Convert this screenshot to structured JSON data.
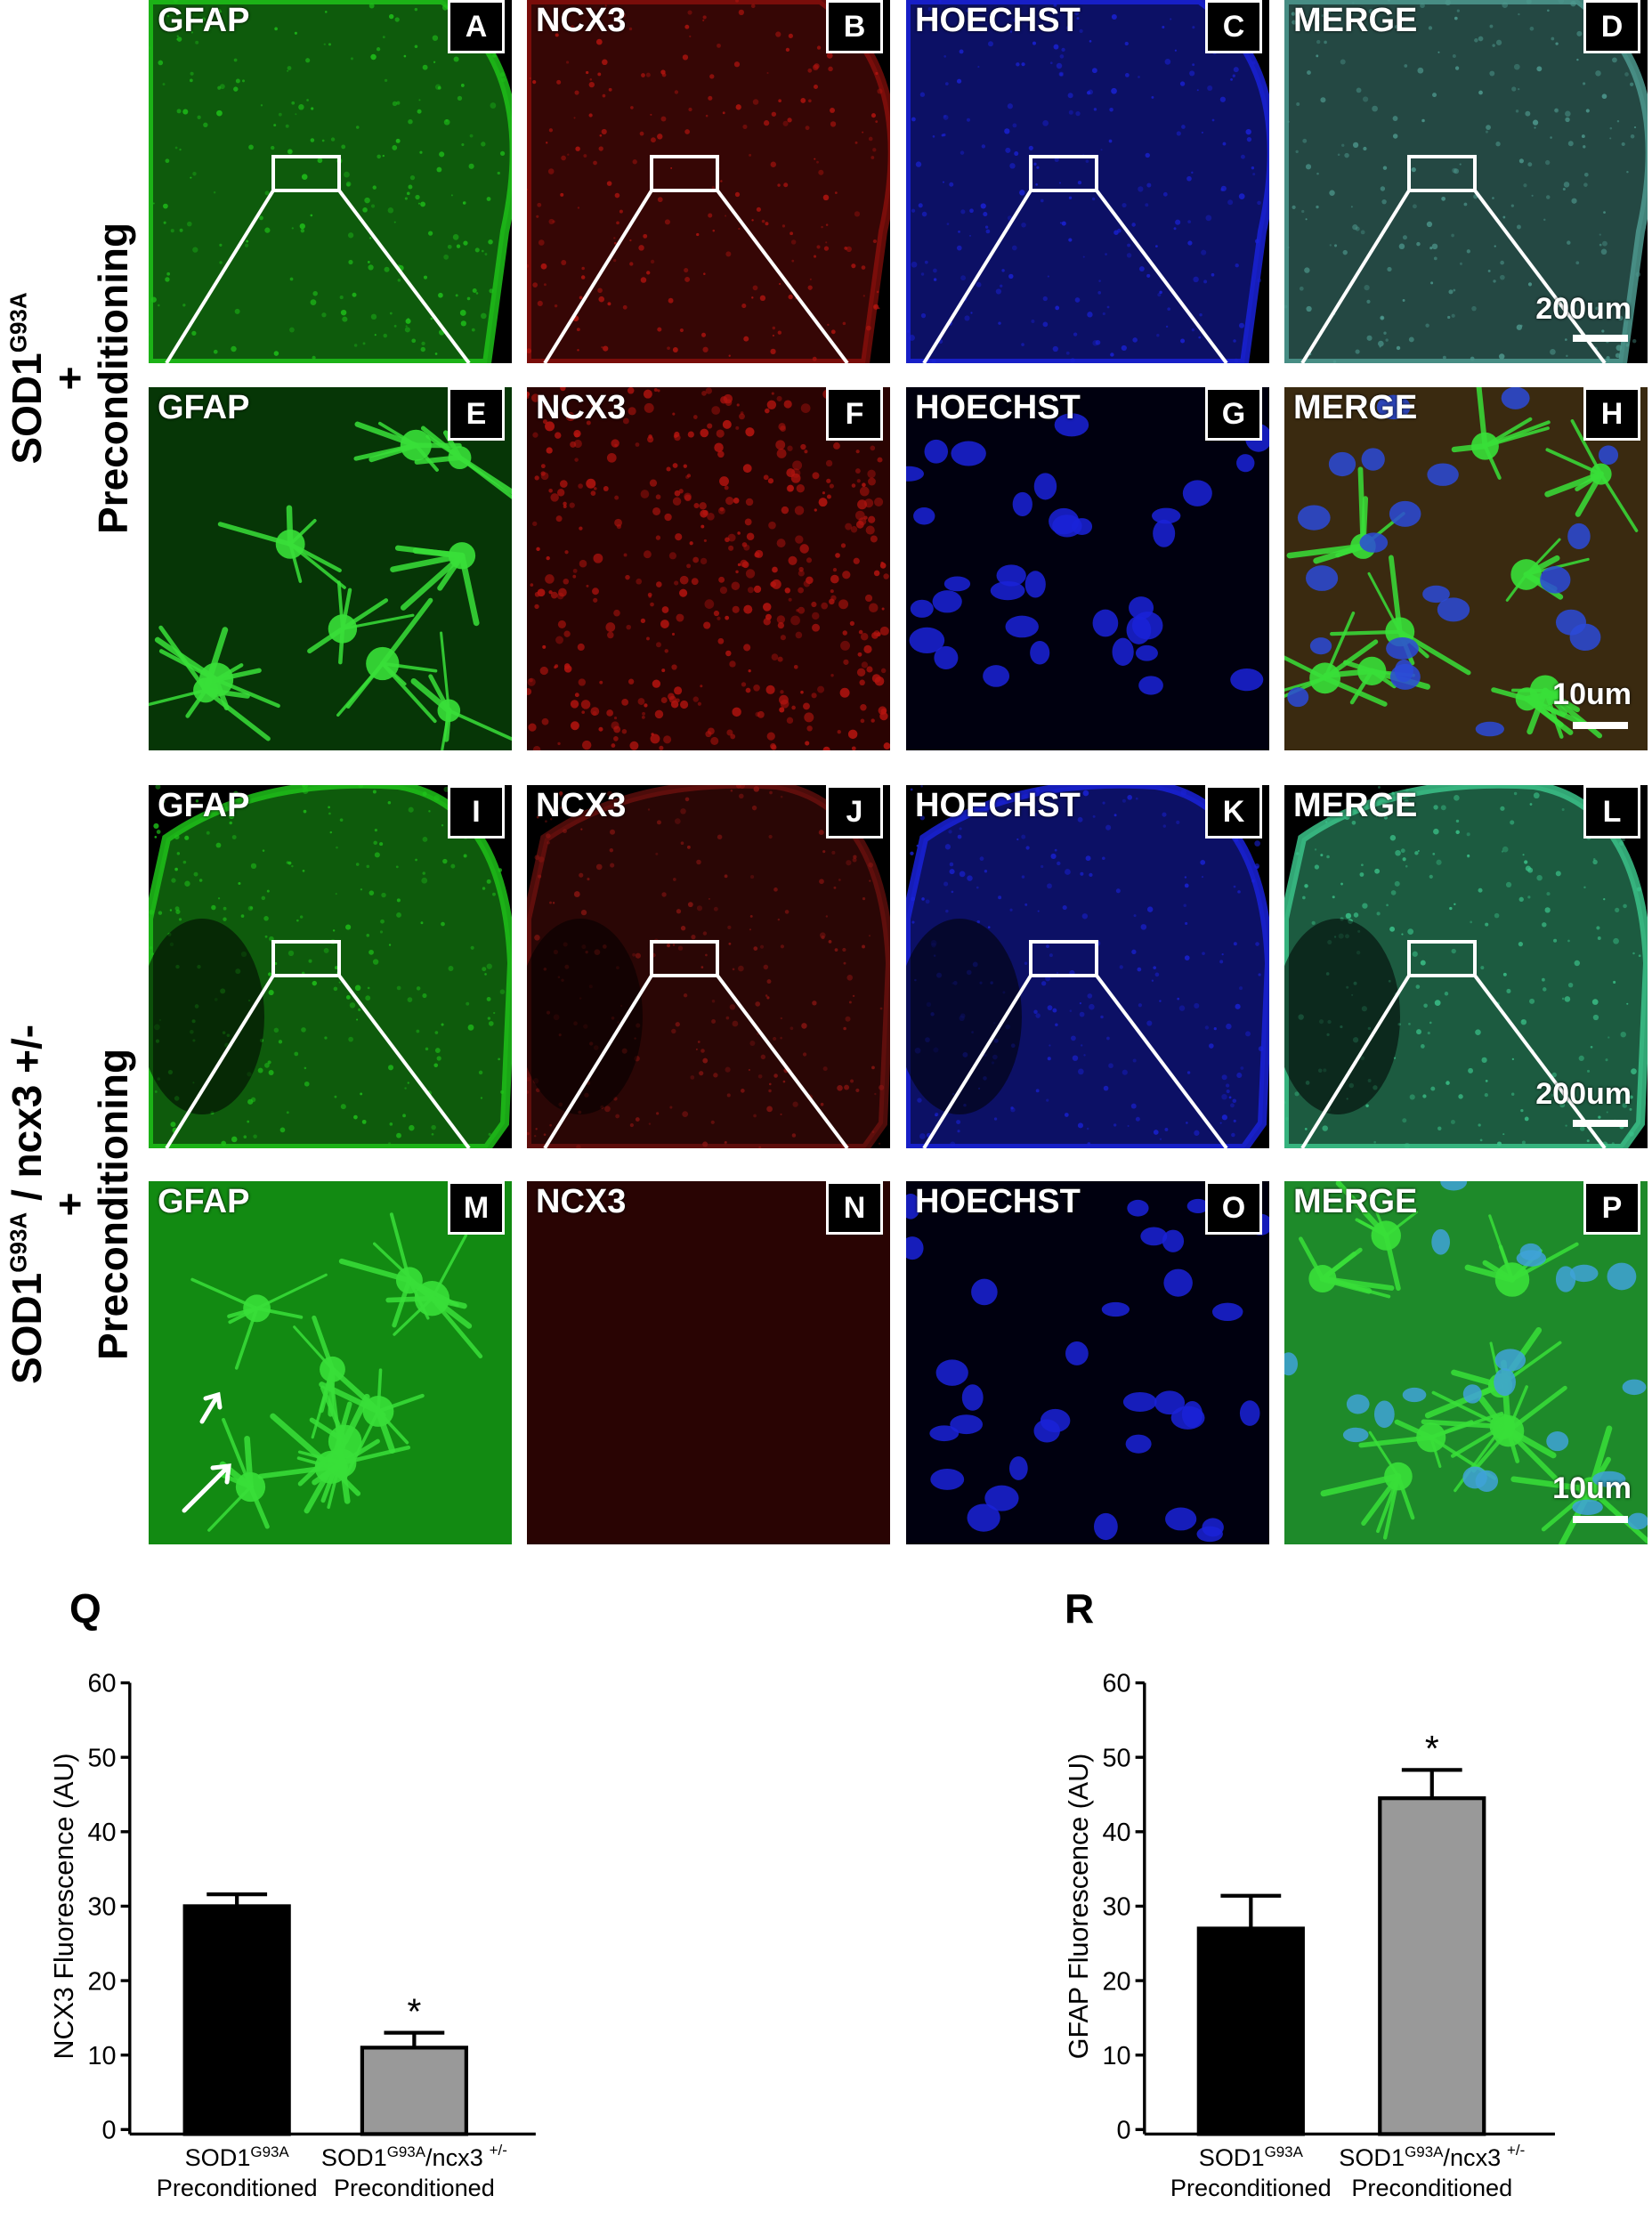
{
  "row_labels": [
    {
      "main": "SOD1",
      "sup": "G93A",
      "tail": "",
      "plus": "+",
      "second": "Preconditioning"
    },
    {
      "main": "SOD1",
      "sup": "G93A",
      "tail": " / ncx3 +/-",
      "plus": "+",
      "second": "Preconditioning"
    }
  ],
  "panels": [
    {
      "letter": "A",
      "stain": "GFAP",
      "color": "#1fc21a",
      "kind": "overview",
      "variant": 1
    },
    {
      "letter": "B",
      "stain": "NCX3",
      "color": "#b3140f",
      "kind": "overview",
      "variant": 1
    },
    {
      "letter": "C",
      "stain": "HOECHST",
      "color": "#1a22d8",
      "kind": "overview",
      "variant": 1
    },
    {
      "letter": "D",
      "stain": "MERGE",
      "color": "#4e9a8f",
      "kind": "overview",
      "variant": 1,
      "scale": "200um"
    },
    {
      "letter": "E",
      "stain": "GFAP",
      "color": "#1fc21a",
      "kind": "zoom-glia"
    },
    {
      "letter": "F",
      "stain": "NCX3",
      "color": "#b3140f",
      "kind": "zoom-speckle"
    },
    {
      "letter": "G",
      "stain": "HOECHST",
      "color": "#1a22d8",
      "kind": "zoom-nuclei"
    },
    {
      "letter": "H",
      "stain": "MERGE",
      "color": "#7a4a2a",
      "kind": "zoom-merge",
      "scale": "10um"
    },
    {
      "letter": "I",
      "stain": "GFAP",
      "color": "#1fc21a",
      "kind": "overview",
      "variant": 2
    },
    {
      "letter": "J",
      "stain": "NCX3",
      "color": "#8a1512",
      "kind": "overview",
      "variant": 2
    },
    {
      "letter": "K",
      "stain": "HOECHST",
      "color": "#1a22d8",
      "kind": "overview",
      "variant": 2
    },
    {
      "letter": "L",
      "stain": "MERGE",
      "color": "#3bc38a",
      "kind": "overview",
      "variant": 2,
      "scale": "200um"
    },
    {
      "letter": "M",
      "stain": "GFAP",
      "color": "#1fc21a",
      "kind": "zoom-glia-dense"
    },
    {
      "letter": "N",
      "stain": "NCX3",
      "color": "#4a0806",
      "kind": "zoom-dim"
    },
    {
      "letter": "O",
      "stain": "HOECHST",
      "color": "#1a22d8",
      "kind": "zoom-nuclei"
    },
    {
      "letter": "P",
      "stain": "MERGE",
      "color": "#2fae3a",
      "kind": "zoom-merge-green",
      "scale": "10um"
    }
  ],
  "chart_data": [
    {
      "panel_letter": "Q",
      "type": "bar",
      "ylabel": "NCX3 Fluorescence (AU)",
      "ylim": [
        0,
        60
      ],
      "yticks": [
        0,
        10,
        20,
        30,
        40,
        50,
        60
      ],
      "categories": [
        {
          "line1_main": "SOD1",
          "line1_sup": "G93A",
          "line1_tail": "",
          "line1_sup2": "",
          "line2": "Preconditioned"
        },
        {
          "line1_main": "SOD1",
          "line1_sup": "G93A",
          "line1_tail": "/ncx3",
          "line1_sup2": "+/-",
          "line2": "Preconditioned"
        }
      ],
      "values": [
        30,
        11
      ],
      "errors": [
        1.6,
        2
      ],
      "colors": [
        "#000000",
        "#999999"
      ],
      "significance": [
        "",
        "*"
      ]
    },
    {
      "panel_letter": "R",
      "type": "bar",
      "ylabel": "GFAP Fluorescence (AU)",
      "ylim": [
        0,
        60
      ],
      "yticks": [
        0,
        10,
        20,
        30,
        40,
        50,
        60
      ],
      "categories": [
        {
          "line1_main": "SOD1",
          "line1_sup": "G93A",
          "line1_tail": "",
          "line1_sup2": "",
          "line2": "Preconditioned"
        },
        {
          "line1_main": "SOD1",
          "line1_sup": "G93A",
          "line1_tail": "/ncx3",
          "line1_sup2": "+/-",
          "line2": "Preconditioned"
        }
      ],
      "values": [
        27,
        44.5
      ],
      "errors": [
        4.4,
        3.8
      ],
      "colors": [
        "#000000",
        "#999999"
      ],
      "significance": [
        "",
        "*"
      ]
    }
  ]
}
